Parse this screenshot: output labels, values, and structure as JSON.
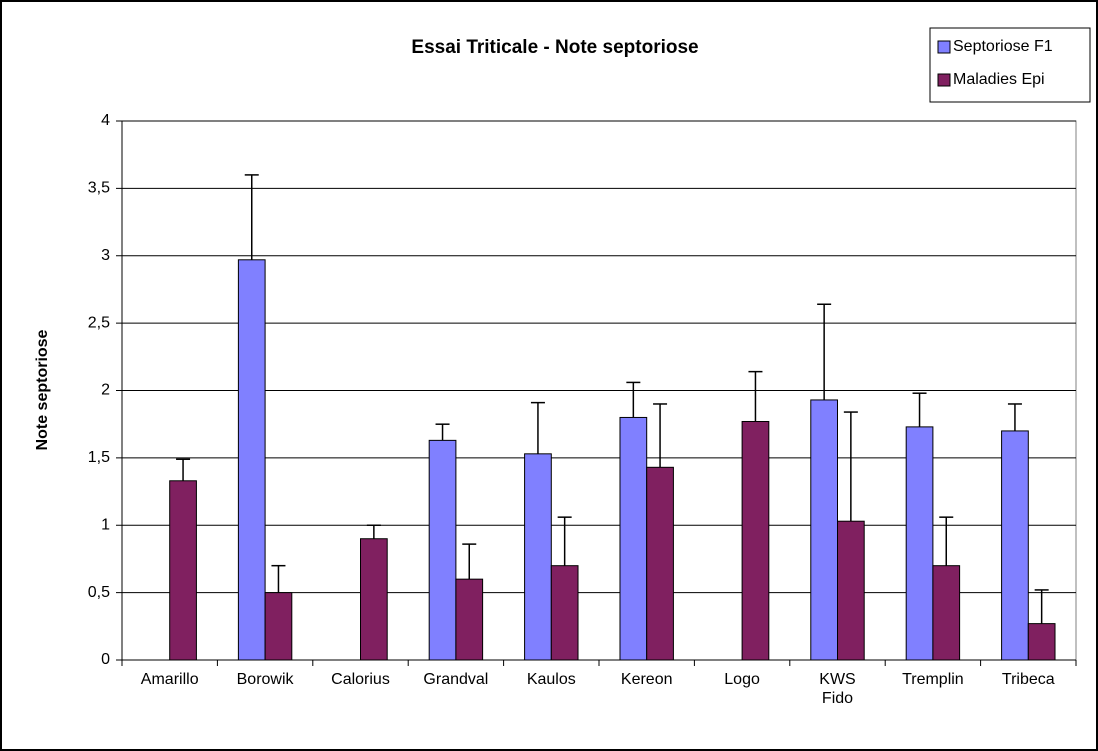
{
  "chart_data": {
    "type": "bar",
    "title": "Essai Triticale - Note septoriose",
    "y_label": "Note septoriose",
    "categories": [
      "Amarillo",
      "Borowik",
      "Calorius",
      "Grandval",
      "Kaulos",
      "Kereon",
      "Logo",
      "KWS Fido",
      "Tremplin",
      "Tribeca"
    ],
    "series": [
      {
        "name": "Septoriose F1",
        "color": "#8080ff",
        "values": [
          0,
          2.97,
          null,
          1.63,
          1.53,
          1.8,
          null,
          1.93,
          1.73,
          1.7
        ],
        "errors": [
          null,
          0.63,
          null,
          0.12,
          0.38,
          0.26,
          null,
          0.71,
          0.25,
          0.2
        ]
      },
      {
        "name": "Maladies Epi",
        "color": "#802060",
        "values": [
          1.33,
          0.5,
          0.9,
          0.6,
          0.7,
          1.43,
          1.77,
          1.03,
          0.7,
          0.27
        ],
        "errors": [
          0.16,
          0.2,
          0.1,
          0.26,
          0.36,
          0.47,
          0.37,
          0.81,
          0.36,
          0.25
        ]
      }
    ],
    "ylim": [
      0,
      4
    ],
    "yticks": [
      0,
      {
        "value": 0.5,
        "label": "0,5"
      },
      1,
      {
        "value": 1.5,
        "label": "1,5"
      },
      2,
      {
        "value": 2.5,
        "label": "2,5"
      },
      3,
      {
        "value": 3.5,
        "label": "3,5"
      },
      4
    ],
    "grid": true,
    "legend": "top-right"
  }
}
